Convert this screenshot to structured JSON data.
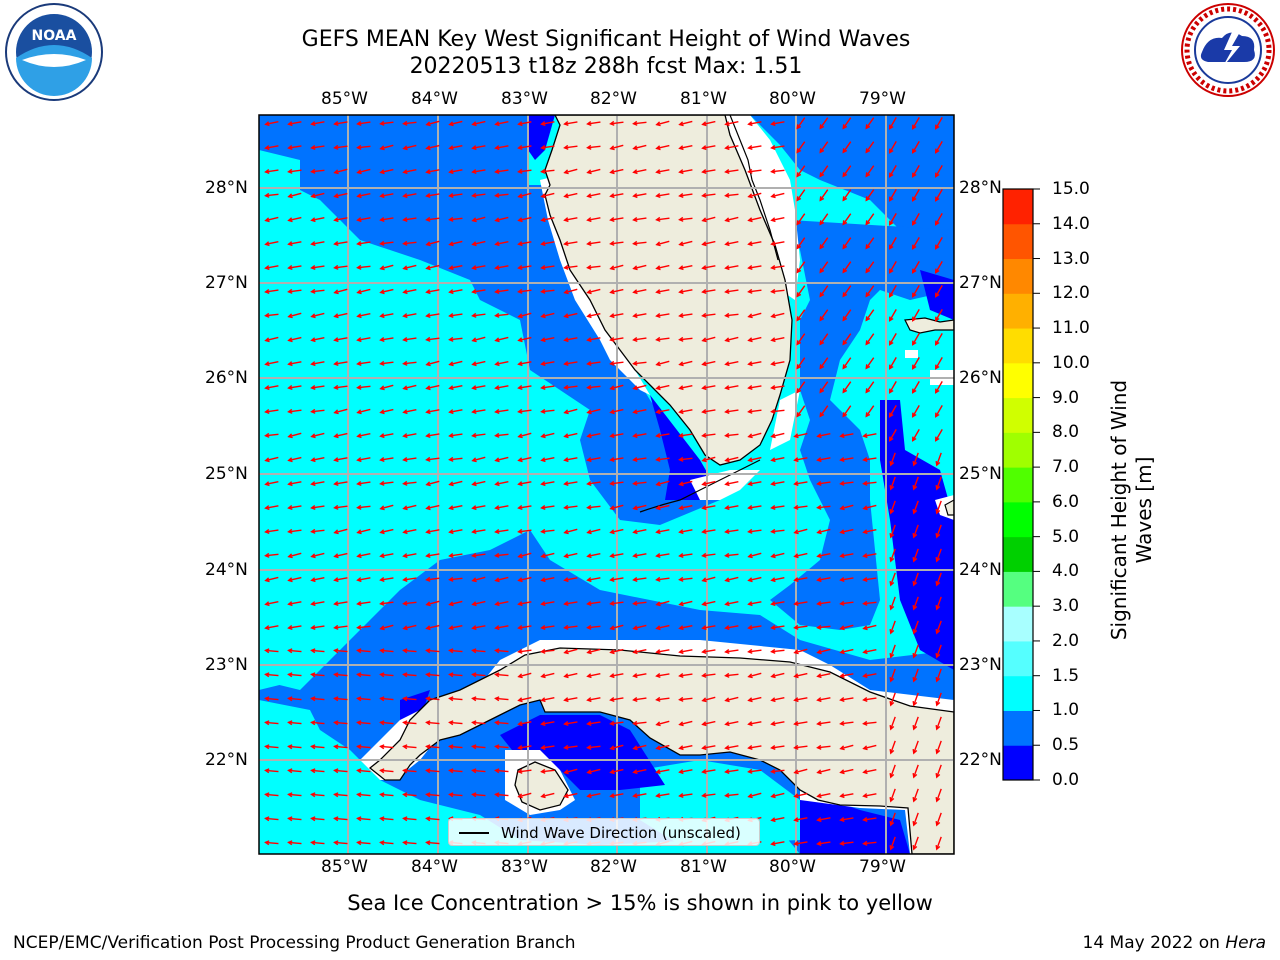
{
  "title_line1": "GEFS MEAN Key West Significant Height of Wind Waves",
  "title_line2": "20220513 t18z 288h fcst   Max: 1.51",
  "lon_labels": [
    "85°W",
    "84°W",
    "83°W",
    "82°W",
    "81°W",
    "80°W",
    "79°W"
  ],
  "lat_labels": [
    "28°N",
    "27°N",
    "26°N",
    "25°N",
    "24°N",
    "23°N",
    "22°N"
  ],
  "colorbar": {
    "title": "Significant Height of Wind Waves [m]",
    "ticks": [
      "15.0",
      "14.0",
      "13.0",
      "12.0",
      "11.0",
      "10.0",
      "9.0",
      "8.0",
      "7.0",
      "6.0",
      "5.0",
      "4.0",
      "3.0",
      "2.0",
      "1.5",
      "1.0",
      "0.5",
      "0.0"
    ],
    "colors": [
      "#0000ff",
      "#0073ff",
      "#00ffff",
      "#55ffff",
      "#a8ffff",
      "#55ff80",
      "#00d000",
      "#00ff00",
      "#50ff00",
      "#a0ff00",
      "#d0ff00",
      "#ffff00",
      "#ffdd00",
      "#ffb000",
      "#ff8800",
      "#ff5500",
      "#ff2200",
      "#ff0000"
    ]
  },
  "legend_label": "Wind Wave Direction (unscaled)",
  "note": "Sea Ice Concentration > 15% is shown in pink to yellow",
  "credit": "NCEP/EMC/Verification Post Processing Product Generation Branch",
  "date_text": "14 May 2022 on ",
  "date_host": "Hera",
  "logos": {
    "left": "NOAA",
    "right": "NATIONAL WEATHER SERVICE"
  },
  "map_colors": {
    "land": "#eeeddd",
    "grid": "#b0b0b0",
    "arrow": "#ff0000",
    "c0": "#0000ff",
    "c1": "#0073ff",
    "c2": "#00ffff",
    "c3": "#55ffff"
  }
}
